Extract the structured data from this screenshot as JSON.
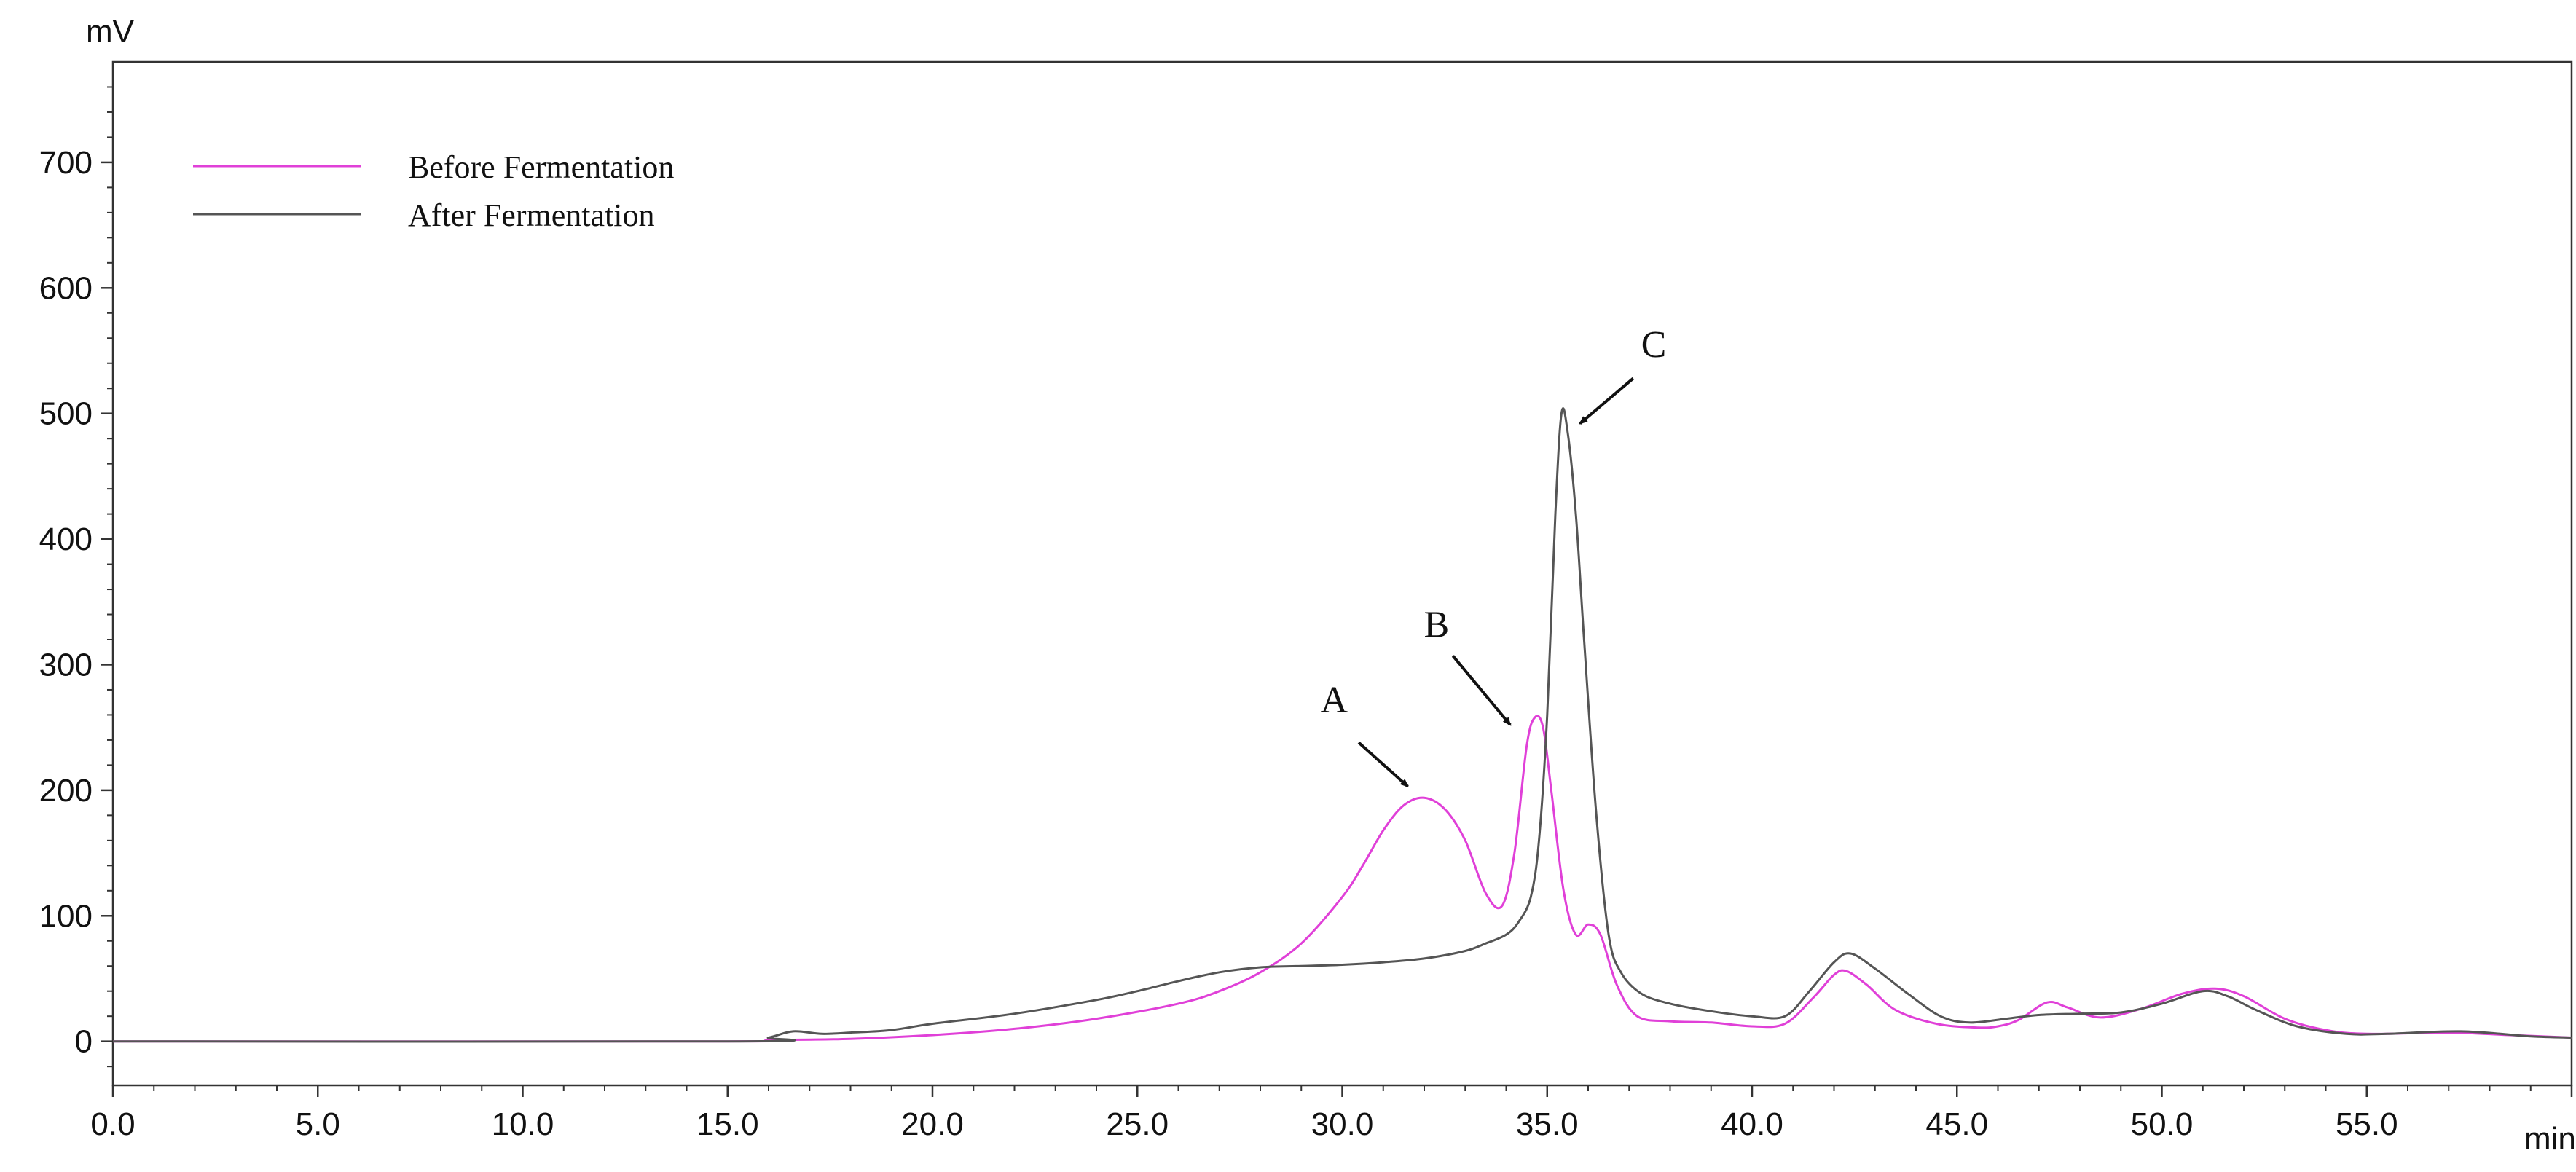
{
  "chart_data": {
    "type": "line",
    "title": "",
    "xlabel": "",
    "ylabel": "",
    "x_unit": "min",
    "y_unit": "mV",
    "xlim": [
      0,
      60
    ],
    "ylim": [
      -35,
      780
    ],
    "x_ticks": [
      0,
      5,
      10,
      15,
      20,
      25,
      30,
      35,
      40,
      45,
      50,
      55
    ],
    "x_tick_labels": [
      "0.0",
      "5.0",
      "10.0",
      "15.0",
      "20.0",
      "25.0",
      "30.0",
      "35.0",
      "40.0",
      "45.0",
      "50.0",
      "55.0"
    ],
    "y_ticks": [
      0,
      100,
      200,
      300,
      400,
      500,
      600,
      700
    ],
    "y_tick_labels": [
      "0",
      "100",
      "200",
      "300",
      "400",
      "500",
      "600",
      "700"
    ],
    "grid": false,
    "legend_position": "top-left",
    "series": [
      {
        "name": "Before Fermentation",
        "color": "#e040d8",
        "points": [
          [
            0,
            0
          ],
          [
            15,
            0
          ],
          [
            16,
            1
          ],
          [
            18,
            2
          ],
          [
            20,
            5
          ],
          [
            22,
            10
          ],
          [
            24,
            18
          ],
          [
            26,
            30
          ],
          [
            27,
            40
          ],
          [
            28,
            55
          ],
          [
            29,
            78
          ],
          [
            30,
            115
          ],
          [
            30.5,
            140
          ],
          [
            31,
            168
          ],
          [
            31.5,
            188
          ],
          [
            32,
            194
          ],
          [
            32.5,
            185
          ],
          [
            33,
            160
          ],
          [
            33.5,
            118
          ],
          [
            33.9,
            108
          ],
          [
            34.2,
            150
          ],
          [
            34.5,
            235
          ],
          [
            34.7,
            258
          ],
          [
            34.9,
            250
          ],
          [
            35.1,
            200
          ],
          [
            35.4,
            120
          ],
          [
            35.7,
            85
          ],
          [
            36,
            93
          ],
          [
            36.3,
            85
          ],
          [
            36.7,
            45
          ],
          [
            37.2,
            20
          ],
          [
            38,
            16
          ],
          [
            39,
            15
          ],
          [
            40,
            12
          ],
          [
            40.8,
            14
          ],
          [
            41.5,
            35
          ],
          [
            42,
            53
          ],
          [
            42.3,
            56
          ],
          [
            42.8,
            45
          ],
          [
            43.5,
            25
          ],
          [
            44.5,
            14
          ],
          [
            45.5,
            11
          ],
          [
            46,
            12
          ],
          [
            46.5,
            17
          ],
          [
            47.2,
            31
          ],
          [
            47.7,
            27
          ],
          [
            48.5,
            19
          ],
          [
            49.5,
            26
          ],
          [
            50.5,
            38
          ],
          [
            51.3,
            42
          ],
          [
            52,
            36
          ],
          [
            53,
            18
          ],
          [
            54,
            9
          ],
          [
            55,
            6
          ],
          [
            57,
            7
          ],
          [
            58.5,
            5
          ],
          [
            60,
            3
          ]
        ]
      },
      {
        "name": "After Fermentation",
        "color": "#555555",
        "points": [
          [
            0,
            0
          ],
          [
            15.3,
            0
          ],
          [
            16,
            3
          ],
          [
            16.6,
            8
          ],
          [
            17.3,
            6
          ],
          [
            18,
            7
          ],
          [
            19,
            9
          ],
          [
            20,
            14
          ],
          [
            22,
            22
          ],
          [
            24,
            33
          ],
          [
            25,
            40
          ],
          [
            26,
            48
          ],
          [
            27,
            55
          ],
          [
            28,
            59
          ],
          [
            29,
            60
          ],
          [
            30,
            61
          ],
          [
            31,
            63
          ],
          [
            32,
            66
          ],
          [
            33,
            72
          ],
          [
            33.5,
            78
          ],
          [
            34,
            85
          ],
          [
            34.3,
            95
          ],
          [
            34.6,
            115
          ],
          [
            34.8,
            160
          ],
          [
            35,
            260
          ],
          [
            35.2,
            420
          ],
          [
            35.35,
            500
          ],
          [
            35.5,
            485
          ],
          [
            35.7,
            420
          ],
          [
            35.9,
            320
          ],
          [
            36.2,
            180
          ],
          [
            36.5,
            85
          ],
          [
            36.8,
            55
          ],
          [
            37.3,
            38
          ],
          [
            38,
            30
          ],
          [
            39,
            24
          ],
          [
            40,
            20
          ],
          [
            40.8,
            20
          ],
          [
            41.4,
            40
          ],
          [
            42,
            63
          ],
          [
            42.4,
            70
          ],
          [
            43,
            58
          ],
          [
            43.8,
            38
          ],
          [
            44.6,
            20
          ],
          [
            45.3,
            15
          ],
          [
            46.2,
            18
          ],
          [
            47,
            21
          ],
          [
            48,
            22
          ],
          [
            49,
            23
          ],
          [
            50,
            30
          ],
          [
            51,
            40
          ],
          [
            51.6,
            36
          ],
          [
            52.3,
            25
          ],
          [
            53.3,
            12
          ],
          [
            54.5,
            6
          ],
          [
            55.5,
            6
          ],
          [
            57.3,
            8
          ],
          [
            59,
            4
          ],
          [
            60,
            3
          ]
        ]
      }
    ],
    "annotations": [
      {
        "text": "A",
        "label_x": 29.8,
        "label_y": 262,
        "arrow_from": [
          30.4,
          238
        ],
        "arrow_to": [
          31.6,
          203
        ]
      },
      {
        "text": "B",
        "label_x": 32.3,
        "label_y": 322,
        "arrow_from": [
          32.7,
          307
        ],
        "arrow_to": [
          34.1,
          252
        ]
      },
      {
        "text": "C",
        "label_x": 37.6,
        "label_y": 545,
        "arrow_from": [
          37.1,
          528
        ],
        "arrow_to": [
          35.8,
          492
        ]
      }
    ]
  }
}
